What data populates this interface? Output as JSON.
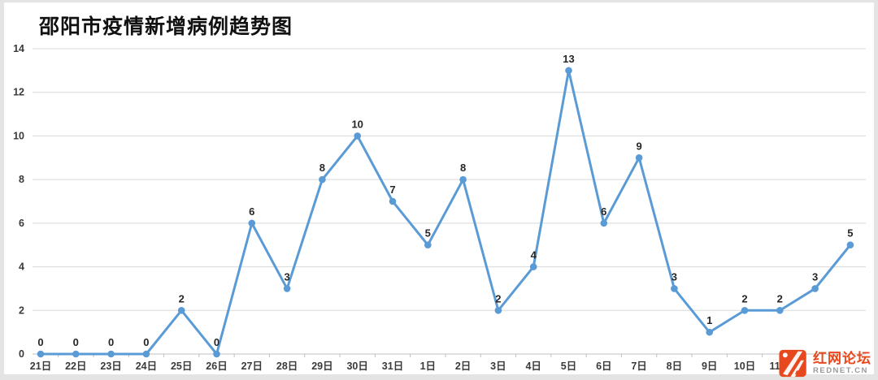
{
  "title": "邵阳市疫情新增病例趋势图",
  "chart_data": {
    "type": "line",
    "title": "邵阳市疫情新增病例趋势图",
    "categories": [
      "21日",
      "22日",
      "23日",
      "24日",
      "25日",
      "26日",
      "27日",
      "28日",
      "29日",
      "30日",
      "31日",
      "1日",
      "2日",
      "3日",
      "4日",
      "5日",
      "6日",
      "7日",
      "8日",
      "9日",
      "10日",
      "11日",
      "",
      ""
    ],
    "values": [
      0,
      0,
      0,
      0,
      2,
      0,
      6,
      3,
      8,
      10,
      7,
      5,
      8,
      2,
      4,
      13,
      6,
      9,
      3,
      1,
      2,
      2,
      3,
      5
    ],
    "xlabel": "",
    "ylabel": "",
    "ylim": [
      0,
      14
    ],
    "yticks": [
      0,
      2,
      4,
      6,
      8,
      10,
      12,
      14
    ],
    "grid": true,
    "data_labels": true,
    "legend": "none",
    "marker": "circle"
  },
  "colors": {
    "line": "#5B9BD5",
    "marker": "#5B9BD5",
    "grid": "#D9D9D9",
    "axis": "#BFBFBF",
    "data_label": "#262626",
    "tick_label": "#3a3a3a",
    "logo_orange": "#E8481D",
    "logo_gray": "#9a9a9a"
  },
  "watermark": {
    "name": "红网论坛",
    "domain": "REDNET.CN"
  }
}
